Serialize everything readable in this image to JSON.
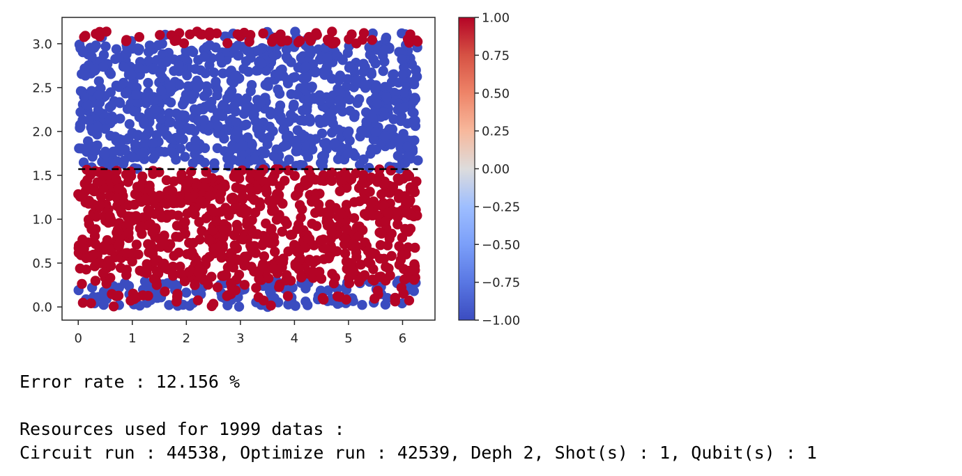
{
  "chart_data": {
    "type": "scatter",
    "title": "",
    "xlabel": "",
    "ylabel": "",
    "xlim": [
      -0.3,
      6.6
    ],
    "ylim": [
      -0.15,
      3.3
    ],
    "x_ticks": [
      "0",
      "1",
      "2",
      "3",
      "4",
      "5",
      "6"
    ],
    "y_ticks": [
      "0.0",
      "0.5",
      "1.0",
      "1.5",
      "2.0",
      "2.5",
      "3.0"
    ],
    "colormap": "coolwarm",
    "colorbar": {
      "range": [
        -1.0,
        1.0
      ],
      "ticks": [
        "1.00",
        "0.75",
        "0.50",
        "0.25",
        "0.00",
        "−0.25",
        "−0.50",
        "−0.75",
        "−1.00"
      ]
    },
    "decision_boundary": {
      "y": 1.5708,
      "x_range": [
        0,
        6.2832
      ],
      "style": "dashed",
      "color": "#000000"
    },
    "point_count": 1999,
    "point_x_range": [
      0,
      6.2832
    ],
    "point_y_range": [
      0,
      3.1416
    ],
    "classes": [
      {
        "value": 1.0,
        "color": "#b40426",
        "region": "y < 1.5708 or y > 3.0"
      },
      {
        "value": -1.0,
        "color": "#3b4cc0",
        "region": "1.5708 < y < 3.0 or y < 0.3"
      }
    ],
    "grid": false
  },
  "output": {
    "error_rate": "Error rate : 12.156 %",
    "resources_header": "Resources used for 1999 datas :",
    "resources_detail": "Circuit run : 44538, Optimize run : 42539, Deph 2, Shot(s) : 1, Qubit(s) : 1"
  }
}
